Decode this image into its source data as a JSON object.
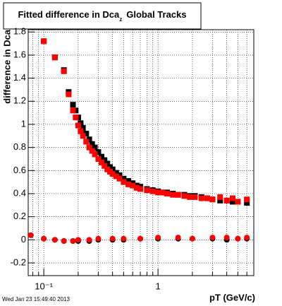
{
  "chart_data": {
    "type": "scatter",
    "title": "Fitted difference in Dca",
    "title_subscript": "z",
    "title_suffix": "Global Tracks",
    "ylabel": "difference in Dca",
    "xlabel": "pT (GeV/c)",
    "footer": "Wed Jan 23 15:49:40 2013",
    "xlog": true,
    "grid": true,
    "xlim": [
      0.073,
      6.9
    ],
    "ylim": [
      -0.31,
      1.82
    ],
    "xticks": [
      {
        "value": 0.1,
        "label": "10⁻¹"
      },
      1
    ],
    "xminor": [
      0.08,
      0.09,
      0.2,
      0.3,
      0.4,
      0.5,
      0.6,
      0.7,
      0.8,
      0.9,
      2,
      3,
      4,
      5,
      6
    ],
    "yticks": [
      -0.2,
      0,
      0.2,
      0.4,
      0.6,
      0.8,
      1,
      1.2,
      1.4,
      1.6,
      1.8
    ],
    "series": [
      {
        "color": "#000000",
        "marker": "square",
        "x": [
          0.1,
          0.125,
          0.15,
          0.165,
          0.18,
          0.19,
          0.2,
          0.21,
          0.22,
          0.235,
          0.25,
          0.265,
          0.28,
          0.3,
          0.32,
          0.34,
          0.36,
          0.38,
          0.4,
          0.43,
          0.46,
          0.5,
          0.55,
          0.6,
          0.65,
          0.7,
          0.8,
          0.9,
          1,
          1.1,
          1.2,
          1.35,
          1.5,
          1.7,
          1.9,
          2.1,
          2.4,
          2.7,
          3,
          3.5,
          4,
          4.5,
          5,
          6
        ],
        "values": [
          1.72,
          1.58,
          1.47,
          1.28,
          1.17,
          1.12,
          1.06,
          1.01,
          0.97,
          0.92,
          0.87,
          0.83,
          0.8,
          0.76,
          0.72,
          0.69,
          0.66,
          0.63,
          0.61,
          0.58,
          0.56,
          0.53,
          0.51,
          0.49,
          0.47,
          0.46,
          0.44,
          0.43,
          0.42,
          0.41,
          0.41,
          0.4,
          0.39,
          0.39,
          0.38,
          0.38,
          0.37,
          0.36,
          0.35,
          0.34,
          0.34,
          0.33,
          0.33,
          0.32
        ]
      },
      {
        "color": "#ff0000",
        "marker": "square",
        "x": [
          0.1,
          0.125,
          0.15,
          0.165,
          0.18,
          0.19,
          0.2,
          0.21,
          0.22,
          0.235,
          0.25,
          0.265,
          0.28,
          0.3,
          0.32,
          0.34,
          0.36,
          0.38,
          0.4,
          0.43,
          0.46,
          0.5,
          0.55,
          0.6,
          0.65,
          0.7,
          0.8,
          0.9,
          1,
          1.1,
          1.2,
          1.35,
          1.5,
          1.7,
          1.9,
          2.1,
          2.4,
          2.7,
          3,
          3.5,
          4,
          4.5,
          5,
          6
        ],
        "values": [
          1.72,
          1.58,
          1.46,
          1.26,
          1.12,
          1.06,
          0.99,
          0.94,
          0.9,
          0.85,
          0.8,
          0.77,
          0.74,
          0.7,
          0.67,
          0.64,
          0.61,
          0.59,
          0.57,
          0.55,
          0.53,
          0.5,
          0.48,
          0.47,
          0.45,
          0.44,
          0.43,
          0.42,
          0.41,
          0.41,
          0.4,
          0.39,
          0.39,
          0.38,
          0.37,
          0.37,
          0.36,
          0.36,
          0.35,
          0.37,
          0.34,
          0.36,
          0.33,
          0.35
        ]
      },
      {
        "color": "#000000",
        "marker": "circle",
        "x": [
          0.077,
          0.1,
          0.125,
          0.15,
          0.18,
          0.2,
          0.25,
          0.3,
          0.4,
          0.5,
          0.7,
          1,
          1.5,
          2,
          3,
          4,
          5,
          6
        ],
        "values": [
          0.04,
          0.01,
          0.0,
          -0.01,
          -0.01,
          -0.01,
          -0.01,
          0,
          0,
          0,
          0.01,
          0.01,
          0.01,
          0.01,
          0.01,
          0.0,
          0.01,
          0.01
        ]
      },
      {
        "color": "#ff0000",
        "marker": "circle",
        "x": [
          0.077,
          0.1,
          0.125,
          0.15,
          0.18,
          0.2,
          0.25,
          0.3,
          0.4,
          0.5,
          0.7,
          1,
          1.5,
          2,
          3,
          4,
          5,
          6
        ],
        "values": [
          0.04,
          0.01,
          0.0,
          -0.01,
          -0.01,
          0,
          0,
          0.01,
          0.01,
          0.01,
          0.01,
          0.02,
          0.02,
          0.01,
          0.02,
          0.02,
          0.01,
          0.02
        ]
      }
    ]
  }
}
